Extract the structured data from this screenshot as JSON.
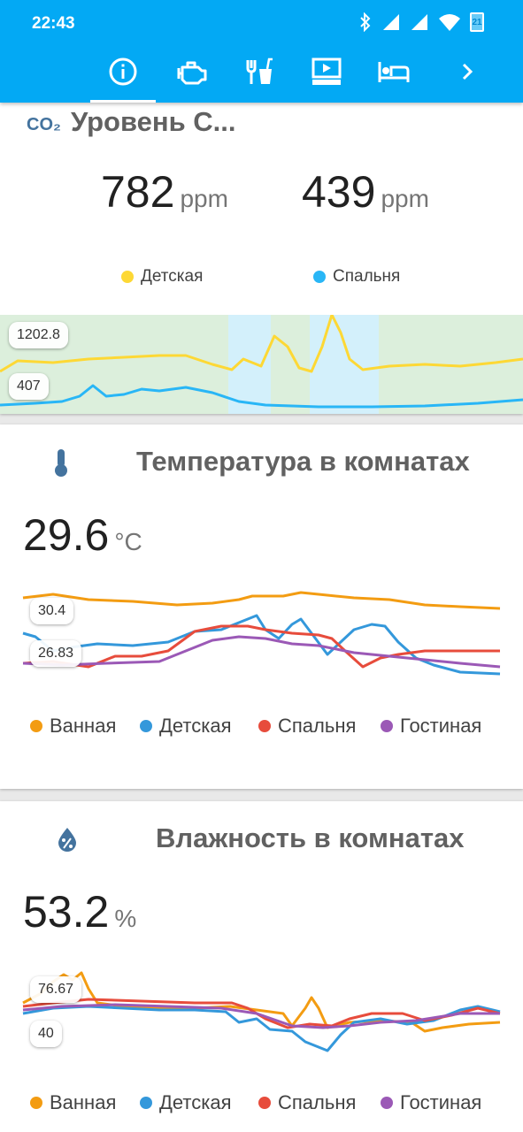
{
  "status": {
    "time": "22:43",
    "battery": "21"
  },
  "tabs": [
    {
      "name": "info",
      "icon": "info-icon",
      "active": true
    },
    {
      "name": "engine",
      "icon": "engine-icon",
      "active": false
    },
    {
      "name": "kitchen",
      "icon": "fork-cup-icon",
      "active": false
    },
    {
      "name": "media",
      "icon": "tv-icon",
      "active": false
    },
    {
      "name": "bedroom",
      "icon": "bed-icon",
      "active": false
    }
  ],
  "co2": {
    "title": "Уровень С...",
    "icon_text": "CO₂",
    "sensors": [
      {
        "value": "782",
        "unit": "ppm",
        "label": "Детская",
        "color": "#fdd835"
      },
      {
        "value": "439",
        "unit": "ppm",
        "label": "Спальня",
        "color": "#29b6f6"
      }
    ],
    "chart_max": "1202.8",
    "chart_min": "407"
  },
  "temperature": {
    "title": "Температура в комнатах",
    "value": "29.6",
    "unit": "°C",
    "chart_max": "30.4",
    "chart_min": "26.83",
    "legend": [
      {
        "label": "Ванная",
        "color": "#f39c12"
      },
      {
        "label": "Детская",
        "color": "#3498db"
      },
      {
        "label": "Спальня",
        "color": "#e74c3c"
      },
      {
        "label": "Гостиная",
        "color": "#9b59b6"
      }
    ]
  },
  "humidity": {
    "title": "Влажность в комнатах",
    "value": "53.2",
    "unit": "%",
    "chart_max": "76.67",
    "chart_min": "40",
    "legend": [
      {
        "label": "Ванная",
        "color": "#f39c12"
      },
      {
        "label": "Детская",
        "color": "#3498db"
      },
      {
        "label": "Спальня",
        "color": "#e74c3c"
      },
      {
        "label": "Гостиная",
        "color": "#9b59b6"
      }
    ]
  }
}
